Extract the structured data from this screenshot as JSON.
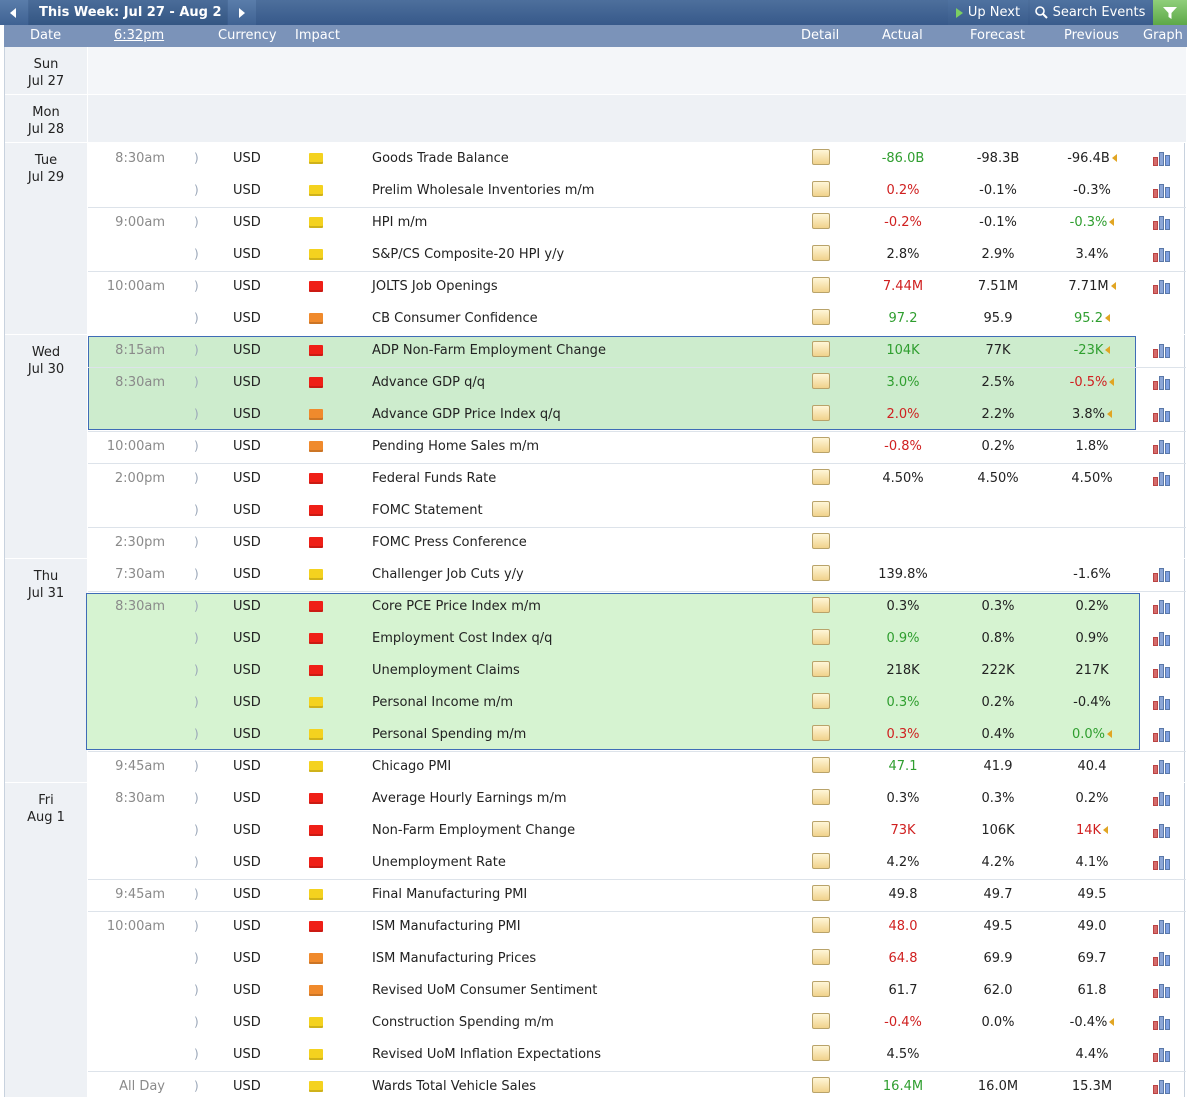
{
  "toolbar": {
    "prev_icon": "left-arrow",
    "week_label": "This Week: Jul 27 - Aug 2",
    "next_icon": "right-arrow",
    "up_next_label": "Up Next",
    "search_label": "Search Events",
    "filter_icon": "filter-icon"
  },
  "headers": {
    "date": "Date",
    "time": "6:32pm",
    "currency": "Currency",
    "impact": "Impact",
    "detail": "Detail",
    "actual": "Actual",
    "forecast": "Forecast",
    "previous": "Previous",
    "graph": "Graph"
  },
  "colors": {
    "high": "#ef1f17",
    "medium": "#f08a2c",
    "low": "#f4d21f",
    "highlight_fill": "#cdeccd",
    "highlight_border": "#3f6cb6"
  },
  "days": [
    {
      "day": "Sun",
      "date": "Jul 27",
      "events": []
    },
    {
      "day": "Mon",
      "date": "Jul 28",
      "events": []
    },
    {
      "day": "Tue",
      "date": "Jul 29",
      "events": [
        {
          "time": "8:30am",
          "currency": "USD",
          "impact": "low",
          "event": "Goods Trade Balance",
          "actual": "-86.0B",
          "actual_color": "green",
          "forecast": "-98.3B",
          "previous": "-96.4B",
          "previous_color": "",
          "revised": true,
          "graph": true
        },
        {
          "time": "",
          "currency": "USD",
          "impact": "low",
          "event": "Prelim Wholesale Inventories m/m",
          "actual": "0.2%",
          "actual_color": "red",
          "forecast": "-0.1%",
          "previous": "-0.3%",
          "previous_color": "",
          "revised": false,
          "graph": true
        },
        {
          "time": "9:00am",
          "currency": "USD",
          "impact": "low",
          "event": "HPI m/m",
          "actual": "-0.2%",
          "actual_color": "red",
          "forecast": "-0.1%",
          "previous": "-0.3%",
          "previous_color": "green",
          "revised": true,
          "graph": true
        },
        {
          "time": "",
          "currency": "USD",
          "impact": "low",
          "event": "S&P/CS Composite-20 HPI y/y",
          "actual": "2.8%",
          "actual_color": "",
          "forecast": "2.9%",
          "previous": "3.4%",
          "previous_color": "",
          "revised": false,
          "graph": true
        },
        {
          "time": "10:00am",
          "currency": "USD",
          "impact": "high",
          "event": "JOLTS Job Openings",
          "actual": "7.44M",
          "actual_color": "red",
          "forecast": "7.51M",
          "previous": "7.71M",
          "previous_color": "",
          "revised": true,
          "graph": true
        },
        {
          "time": "",
          "currency": "USD",
          "impact": "medium",
          "event": "CB Consumer Confidence",
          "actual": "97.2",
          "actual_color": "green",
          "forecast": "95.9",
          "previous": "95.2",
          "previous_color": "green",
          "revised": true,
          "graph": false
        }
      ]
    },
    {
      "day": "Wed",
      "date": "Jul 30",
      "events": [
        {
          "time": "8:15am",
          "currency": "USD",
          "impact": "high",
          "event": "ADP Non-Farm Employment Change",
          "actual": "104K",
          "actual_color": "green",
          "forecast": "77K",
          "previous": "-23K",
          "previous_color": "green",
          "revised": true,
          "graph": true
        },
        {
          "time": "8:30am",
          "currency": "USD",
          "impact": "high",
          "event": "Advance GDP q/q",
          "actual": "3.0%",
          "actual_color": "green",
          "forecast": "2.5%",
          "previous": "-0.5%",
          "previous_color": "red",
          "revised": true,
          "graph": true
        },
        {
          "time": "",
          "currency": "USD",
          "impact": "medium",
          "event": "Advance GDP Price Index q/q",
          "actual": "2.0%",
          "actual_color": "red",
          "forecast": "2.2%",
          "previous": "3.8%",
          "previous_color": "",
          "revised": true,
          "graph": true
        },
        {
          "time": "10:00am",
          "currency": "USD",
          "impact": "medium",
          "event": "Pending Home Sales m/m",
          "actual": "-0.8%",
          "actual_color": "red",
          "forecast": "0.2%",
          "previous": "1.8%",
          "previous_color": "",
          "revised": false,
          "graph": true
        },
        {
          "time": "2:00pm",
          "currency": "USD",
          "impact": "high",
          "event": "Federal Funds Rate",
          "actual": "4.50%",
          "actual_color": "",
          "forecast": "4.50%",
          "previous": "4.50%",
          "previous_color": "",
          "revised": false,
          "graph": true
        },
        {
          "time": "",
          "currency": "USD",
          "impact": "high",
          "event": "FOMC Statement",
          "actual": "",
          "actual_color": "",
          "forecast": "",
          "previous": "",
          "previous_color": "",
          "revised": false,
          "graph": false
        },
        {
          "time": "2:30pm",
          "currency": "USD",
          "impact": "high",
          "event": "FOMC Press Conference",
          "actual": "",
          "actual_color": "",
          "forecast": "",
          "previous": "",
          "previous_color": "",
          "revised": false,
          "graph": false
        }
      ]
    },
    {
      "day": "Thu",
      "date": "Jul 31",
      "events": [
        {
          "time": "7:30am",
          "currency": "USD",
          "impact": "low",
          "event": "Challenger Job Cuts y/y",
          "actual": "139.8%",
          "actual_color": "",
          "forecast": "",
          "previous": "-1.6%",
          "previous_color": "",
          "revised": false,
          "graph": true
        },
        {
          "time": "8:30am",
          "currency": "USD",
          "impact": "high",
          "event": "Core PCE Price Index m/m",
          "actual": "0.3%",
          "actual_color": "",
          "forecast": "0.3%",
          "previous": "0.2%",
          "previous_color": "",
          "revised": false,
          "graph": true
        },
        {
          "time": "",
          "currency": "USD",
          "impact": "high",
          "event": "Employment Cost Index q/q",
          "actual": "0.9%",
          "actual_color": "green",
          "forecast": "0.8%",
          "previous": "0.9%",
          "previous_color": "",
          "revised": false,
          "graph": true
        },
        {
          "time": "",
          "currency": "USD",
          "impact": "high",
          "event": "Unemployment Claims",
          "actual": "218K",
          "actual_color": "",
          "forecast": "222K",
          "previous": "217K",
          "previous_color": "",
          "revised": false,
          "graph": true
        },
        {
          "time": "",
          "currency": "USD",
          "impact": "low",
          "event": "Personal Income m/m",
          "actual": "0.3%",
          "actual_color": "green",
          "forecast": "0.2%",
          "previous": "-0.4%",
          "previous_color": "",
          "revised": false,
          "graph": true
        },
        {
          "time": "",
          "currency": "USD",
          "impact": "low",
          "event": "Personal Spending m/m",
          "actual": "0.3%",
          "actual_color": "red",
          "forecast": "0.4%",
          "previous": "0.0%",
          "previous_color": "green",
          "revised": true,
          "graph": true
        },
        {
          "time": "9:45am",
          "currency": "USD",
          "impact": "low",
          "event": "Chicago PMI",
          "actual": "47.1",
          "actual_color": "green",
          "forecast": "41.9",
          "previous": "40.4",
          "previous_color": "",
          "revised": false,
          "graph": true
        }
      ]
    },
    {
      "day": "Fri",
      "date": "Aug 1",
      "events": [
        {
          "time": "8:30am",
          "currency": "USD",
          "impact": "high",
          "event": "Average Hourly Earnings m/m",
          "actual": "0.3%",
          "actual_color": "",
          "forecast": "0.3%",
          "previous": "0.2%",
          "previous_color": "",
          "revised": false,
          "graph": true
        },
        {
          "time": "",
          "currency": "USD",
          "impact": "high",
          "event": "Non-Farm Employment Change",
          "actual": "73K",
          "actual_color": "red",
          "forecast": "106K",
          "previous": "14K",
          "previous_color": "red",
          "revised": true,
          "graph": true
        },
        {
          "time": "",
          "currency": "USD",
          "impact": "high",
          "event": "Unemployment Rate",
          "actual": "4.2%",
          "actual_color": "",
          "forecast": "4.2%",
          "previous": "4.1%",
          "previous_color": "",
          "revised": false,
          "graph": true
        },
        {
          "time": "9:45am",
          "currency": "USD",
          "impact": "low",
          "event": "Final Manufacturing PMI",
          "actual": "49.8",
          "actual_color": "",
          "forecast": "49.7",
          "previous": "49.5",
          "previous_color": "",
          "revised": false,
          "graph": false
        },
        {
          "time": "10:00am",
          "currency": "USD",
          "impact": "high",
          "event": "ISM Manufacturing PMI",
          "actual": "48.0",
          "actual_color": "red",
          "forecast": "49.5",
          "previous": "49.0",
          "previous_color": "",
          "revised": false,
          "graph": true
        },
        {
          "time": "",
          "currency": "USD",
          "impact": "medium",
          "event": "ISM Manufacturing Prices",
          "actual": "64.8",
          "actual_color": "red",
          "forecast": "69.9",
          "previous": "69.7",
          "previous_color": "",
          "revised": false,
          "graph": true
        },
        {
          "time": "",
          "currency": "USD",
          "impact": "medium",
          "event": "Revised UoM Consumer Sentiment",
          "actual": "61.7",
          "actual_color": "",
          "forecast": "62.0",
          "previous": "61.8",
          "previous_color": "",
          "revised": false,
          "graph": true
        },
        {
          "time": "",
          "currency": "USD",
          "impact": "low",
          "event": "Construction Spending m/m",
          "actual": "-0.4%",
          "actual_color": "red",
          "forecast": "0.0%",
          "previous": "-0.4%",
          "previous_color": "",
          "revised": true,
          "graph": true
        },
        {
          "time": "",
          "currency": "USD",
          "impact": "low",
          "event": "Revised UoM Inflation Expectations",
          "actual": "4.5%",
          "actual_color": "",
          "forecast": "",
          "previous": "4.4%",
          "previous_color": "",
          "revised": false,
          "graph": true
        },
        {
          "time": "All Day",
          "currency": "USD",
          "impact": "low",
          "event": "Wards Total Vehicle Sales",
          "actual": "16.4M",
          "actual_color": "green",
          "forecast": "16.0M",
          "previous": "15.3M",
          "previous_color": "",
          "revised": false,
          "graph": true
        }
      ]
    }
  ]
}
